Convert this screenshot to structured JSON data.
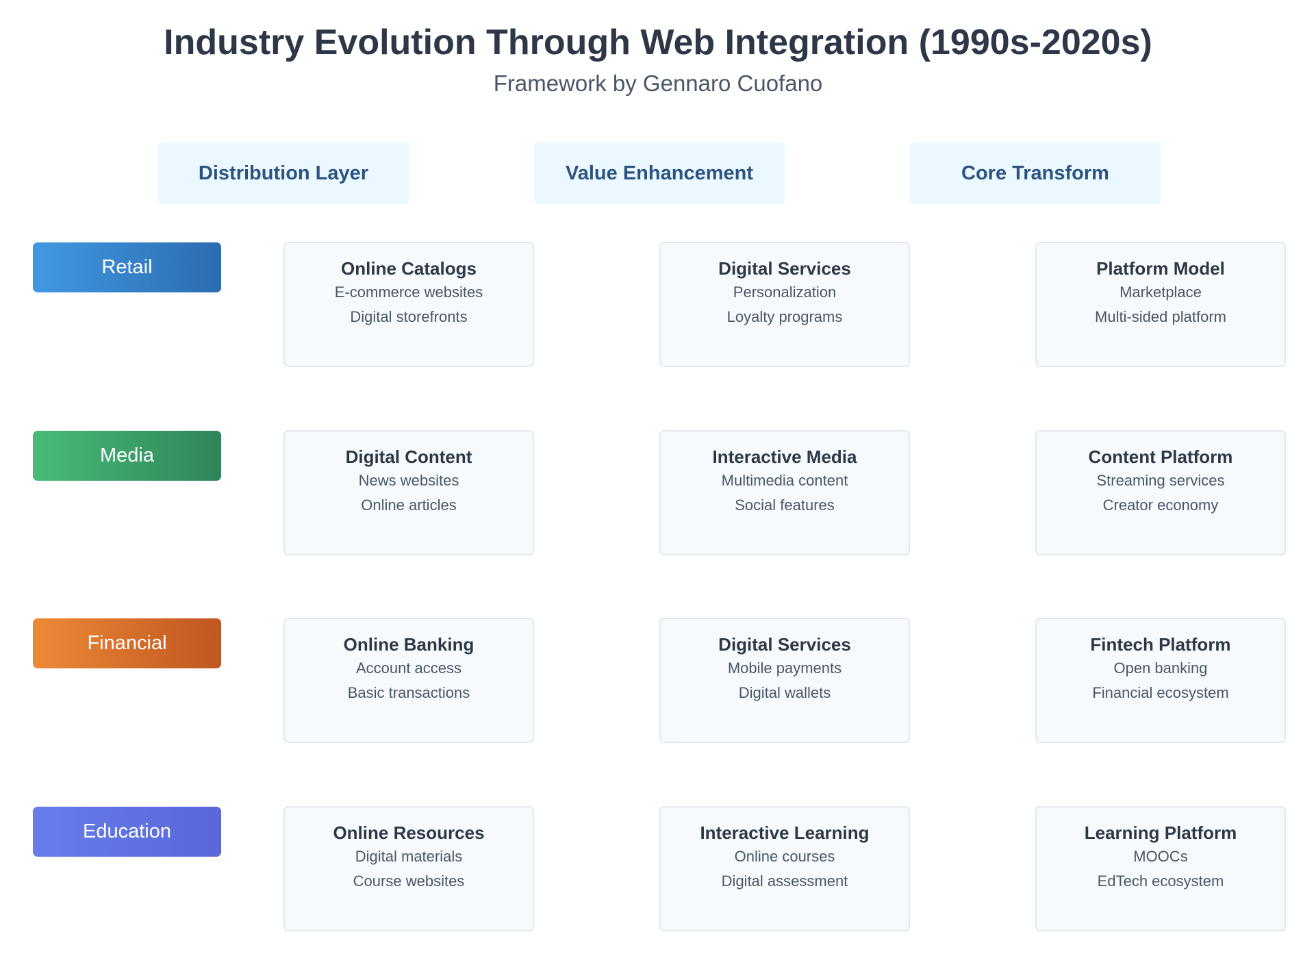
{
  "header": {
    "title": "Industry Evolution Through Web Integration (1990s-2020s)",
    "subtitle": "Framework by Gennaro Cuofano"
  },
  "columns": [
    {
      "label": "Distribution Layer"
    },
    {
      "label": "Value Enhancement"
    },
    {
      "label": "Core Transform"
    }
  ],
  "rows": [
    {
      "label": "Retail",
      "colors": [
        "#4299e1",
        "#2b6cb0"
      ],
      "cells": [
        {
          "title": "Online Catalogs",
          "lines": [
            "E-commerce websites",
            "Digital storefronts"
          ]
        },
        {
          "title": "Digital Services",
          "lines": [
            "Personalization",
            "Loyalty programs"
          ]
        },
        {
          "title": "Platform Model",
          "lines": [
            "Marketplace",
            "Multi-sided platform"
          ]
        }
      ]
    },
    {
      "label": "Media",
      "colors": [
        "#48bb78",
        "#2f855a"
      ],
      "cells": [
        {
          "title": "Digital Content",
          "lines": [
            "News websites",
            "Online articles"
          ]
        },
        {
          "title": "Interactive Media",
          "lines": [
            "Multimedia content",
            "Social features"
          ]
        },
        {
          "title": "Content Platform",
          "lines": [
            "Streaming services",
            "Creator economy"
          ]
        }
      ]
    },
    {
      "label": "Financial",
      "colors": [
        "#ed8936",
        "#c05621"
      ],
      "cells": [
        {
          "title": "Online Banking",
          "lines": [
            "Account access",
            "Basic transactions"
          ]
        },
        {
          "title": "Digital Services",
          "lines": [
            "Mobile payments",
            "Digital wallets"
          ]
        },
        {
          "title": "Fintech Platform",
          "lines": [
            "Open banking",
            "Financial ecosystem"
          ]
        }
      ]
    },
    {
      "label": "Education",
      "colors": [
        "#667eea",
        "#5a67d8"
      ],
      "cells": [
        {
          "title": "Online Resources",
          "lines": [
            "Digital materials",
            "Course websites"
          ]
        },
        {
          "title": "Interactive Learning",
          "lines": [
            "Online courses",
            "Digital assessment"
          ]
        },
        {
          "title": "Learning Platform",
          "lines": [
            "MOOCs",
            "EdTech ecosystem"
          ]
        }
      ]
    }
  ]
}
